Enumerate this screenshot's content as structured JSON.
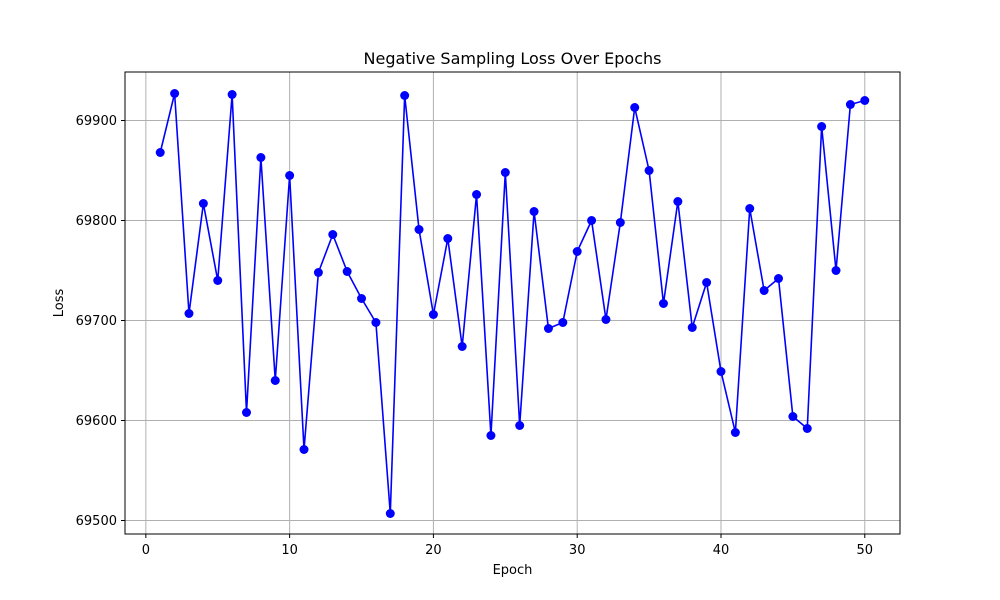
{
  "chart_data": {
    "type": "line",
    "title": "Negative Sampling Loss Over Epochs",
    "xlabel": "Epoch",
    "ylabel": "Loss",
    "xlim": [
      -1.45,
      52.45
    ],
    "ylim": [
      69486.5,
      69948.5
    ],
    "xticks": [
      0,
      10,
      20,
      30,
      40,
      50
    ],
    "yticks": [
      69500,
      69600,
      69700,
      69800,
      69900
    ],
    "grid": true,
    "series": [
      {
        "color": "#0000ff",
        "marker": "circle",
        "x": [
          1,
          2,
          3,
          4,
          5,
          6,
          7,
          8,
          9,
          10,
          11,
          12,
          13,
          14,
          15,
          16,
          17,
          18,
          19,
          20,
          21,
          22,
          23,
          24,
          25,
          26,
          27,
          28,
          29,
          30,
          31,
          32,
          33,
          34,
          35,
          36,
          37,
          38,
          39,
          40,
          41,
          42,
          43,
          44,
          45,
          46,
          47,
          48,
          49,
          50
        ],
        "values": [
          69868,
          69927,
          69707,
          69817,
          69740,
          69926,
          69608,
          69863,
          69640,
          69845,
          69571,
          69748,
          69786,
          69749,
          69722,
          69698,
          69507,
          69925,
          69791,
          69706,
          69782,
          69674,
          69826,
          69585,
          69848,
          69595,
          69809,
          69692,
          69698,
          69769,
          69800,
          69701,
          69798,
          69913,
          69850,
          69717,
          69819,
          69693,
          69738,
          69649,
          69588,
          69812,
          69730,
          69742,
          69604,
          69592,
          69894,
          69750,
          69916,
          69920
        ]
      }
    ]
  }
}
